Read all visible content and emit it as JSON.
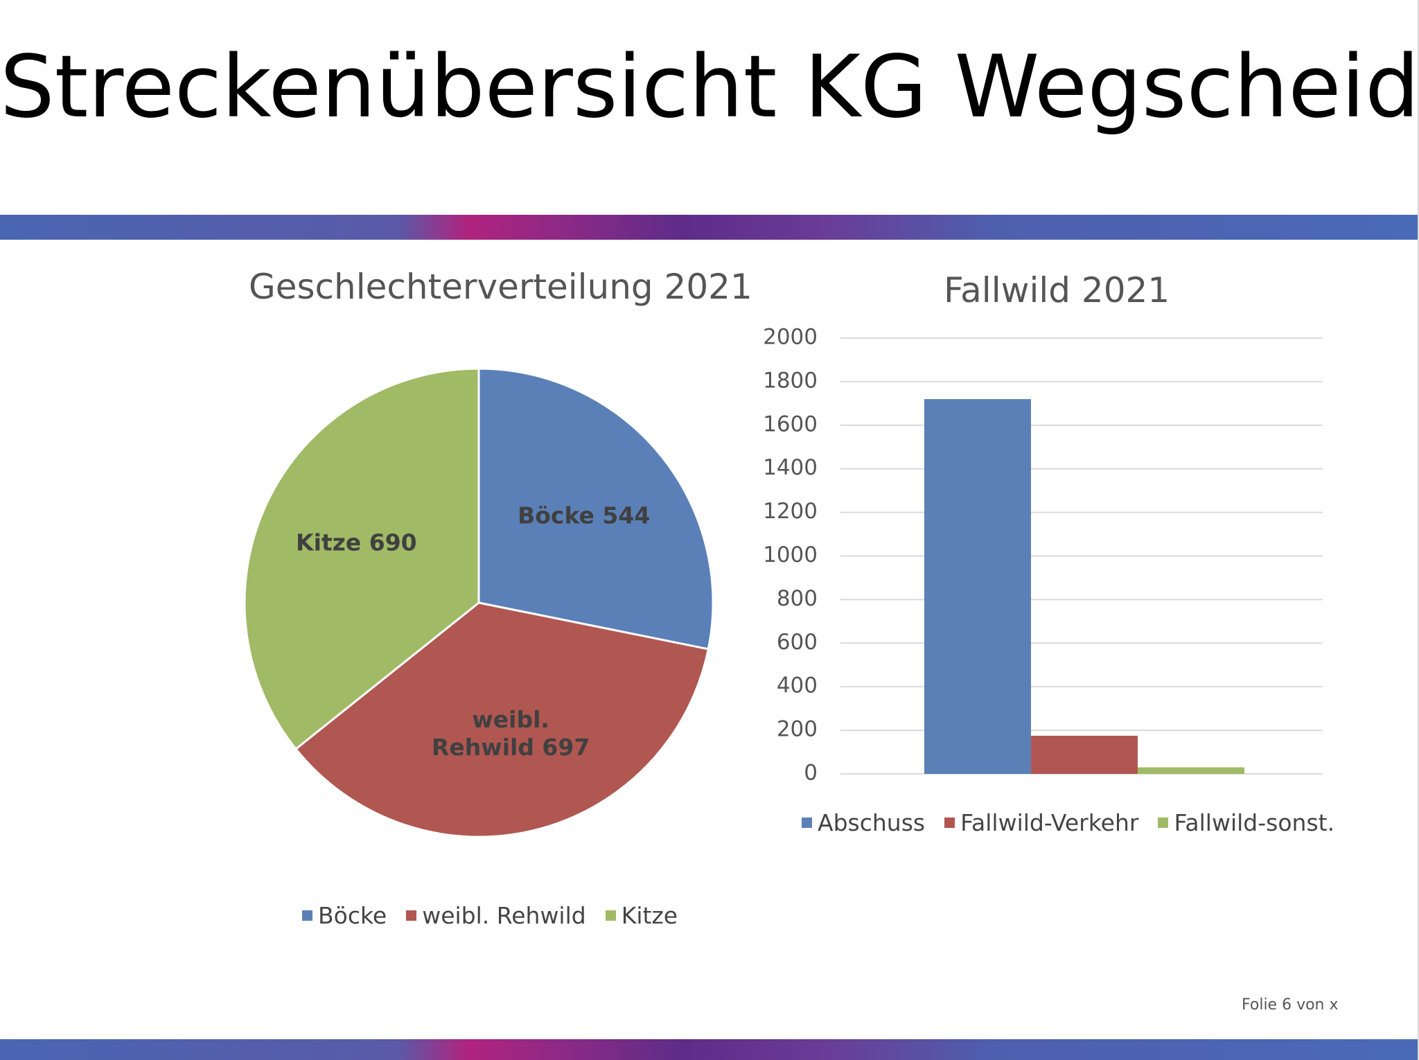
{
  "slide": {
    "title": "Streckenübersicht KG Wegscheid",
    "counter": "Folie 6 von x"
  },
  "colors": {
    "blue": "#5b80b8",
    "red": "#b05751",
    "green": "#a0ba66"
  },
  "chart_data": [
    {
      "type": "pie",
      "title": "Geschlechterverteilung 2021",
      "slices": [
        {
          "label": "Böcke",
          "value": 544,
          "data_label": [
            "Böcke 544"
          ],
          "color": "#5b80b8"
        },
        {
          "label": "weibl. Rehwild",
          "value": 697,
          "data_label": [
            "weibl.",
            "Rehwild 697"
          ],
          "color": "#b05751"
        },
        {
          "label": "Kitze",
          "value": 690,
          "data_label": [
            "Kitze 690"
          ],
          "color": "#a0ba66"
        }
      ],
      "legend": [
        "Böcke",
        "weibl. Rehwild",
        "Kitze"
      ],
      "legend_position": "bottom"
    },
    {
      "type": "bar",
      "title": "Fallwild 2021",
      "categories": [
        ""
      ],
      "series": [
        {
          "name": "Abschuss",
          "values": [
            1720
          ],
          "color": "#5b80b8"
        },
        {
          "name": "Fallwild-Verkehr",
          "values": [
            175
          ],
          "color": "#b05751"
        },
        {
          "name": "Fallwild-sonst.",
          "values": [
            30
          ],
          "color": "#a0ba66"
        }
      ],
      "yticks": [
        "0",
        "200",
        "400",
        "600",
        "800",
        "1000",
        "1200",
        "1400",
        "1600",
        "1800",
        "2000"
      ],
      "ylim": [
        0,
        2000
      ],
      "grid": true,
      "legend_position": "bottom"
    }
  ]
}
